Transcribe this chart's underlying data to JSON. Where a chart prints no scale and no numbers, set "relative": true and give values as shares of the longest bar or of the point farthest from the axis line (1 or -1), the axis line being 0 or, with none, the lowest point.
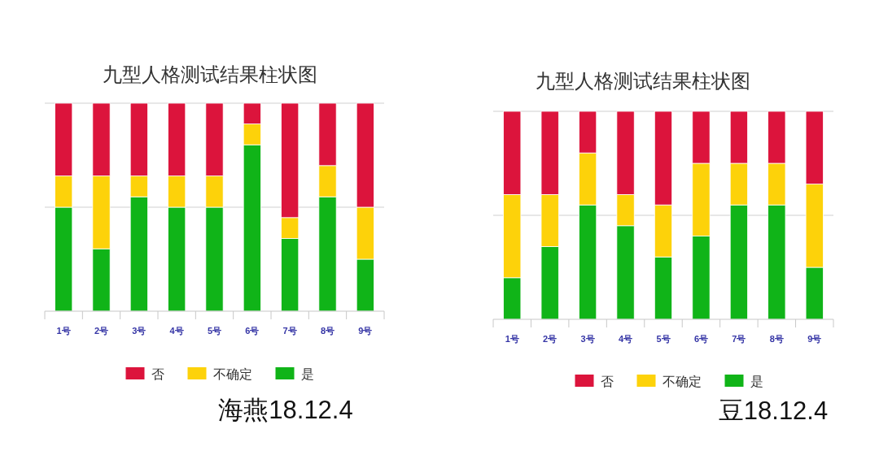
{
  "chart_data": [
    {
      "type": "bar",
      "title": "九型人格测试结果柱状图",
      "categories": [
        "1号",
        "2号",
        "3号",
        "4号",
        "5号",
        "6号",
        "7号",
        "8号",
        "9号"
      ],
      "stacked": true,
      "relative": true,
      "legend": "bottom",
      "ref_lines": [
        {
          "axis": "y",
          "value": 0.5,
          "color": "#cfcfcf"
        },
        {
          "axis": "y",
          "value": 1,
          "color": "#cfcfcf"
        }
      ],
      "series": [
        {
          "name": "是",
          "color": "#10b418",
          "values": [
            0.5,
            0.3,
            0.55,
            0.5,
            0.5,
            0.8,
            0.35,
            0.55,
            0.25
          ]
        },
        {
          "name": "不确定",
          "color": "#fdd20a",
          "values": [
            0.15,
            0.35,
            0.1,
            0.15,
            0.15,
            0.1,
            0.1,
            0.15,
            0.25
          ]
        },
        {
          "name": "否",
          "color": "#dc143c",
          "values": [
            0.35,
            0.35,
            0.35,
            0.35,
            0.35,
            0.1,
            0.55,
            0.3,
            0.5
          ]
        }
      ],
      "annotations": [
        "海燕18.12.4"
      ]
    },
    {
      "type": "bar",
      "title": "九型人格测试结果柱状图",
      "categories": [
        "1号",
        "2号",
        "3号",
        "4号",
        "5号",
        "6号",
        "7号",
        "8号",
        "9号"
      ],
      "stacked": true,
      "relative": true,
      "legend": "bottom",
      "ref_lines": [
        {
          "axis": "y",
          "value": 0.5,
          "color": "#cfcfcf"
        },
        {
          "axis": "y",
          "value": 1,
          "color": "#cfcfcf"
        }
      ],
      "series": [
        {
          "name": "是",
          "color": "#10b418",
          "values": [
            0.2,
            0.35,
            0.55,
            0.45,
            0.3,
            0.4,
            0.55,
            0.55,
            0.25
          ]
        },
        {
          "name": "不确定",
          "color": "#fdd20a",
          "values": [
            0.4,
            0.25,
            0.25,
            0.15,
            0.25,
            0.35,
            0.2,
            0.2,
            0.4
          ]
        },
        {
          "name": "否",
          "color": "#dc143c",
          "values": [
            0.4,
            0.4,
            0.2,
            0.4,
            0.45,
            0.25,
            0.25,
            0.25,
            0.35
          ]
        }
      ],
      "annotations": [
        "豆18.12.4"
      ]
    }
  ]
}
